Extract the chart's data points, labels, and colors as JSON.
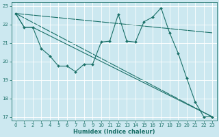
{
  "xlabel": "Humidex (Indice chaleur)",
  "background_color": "#cce8f0",
  "grid_color": "#ffffff",
  "line_color": "#1a7068",
  "xlim": [
    -0.5,
    23.5
  ],
  "ylim": [
    16.8,
    23.2
  ],
  "yticks": [
    17,
    18,
    19,
    20,
    21,
    22,
    23
  ],
  "xticks": [
    0,
    1,
    2,
    3,
    4,
    5,
    6,
    7,
    8,
    9,
    10,
    11,
    12,
    13,
    14,
    15,
    16,
    17,
    18,
    19,
    20,
    21,
    22,
    23
  ],
  "series_main": {
    "x": [
      0,
      1,
      2,
      3,
      4,
      5,
      6,
      7,
      8,
      9,
      10,
      11,
      12,
      13,
      14,
      15,
      16,
      17,
      18,
      19,
      20,
      21,
      22,
      23
    ],
    "y": [
      22.6,
      21.85,
      21.85,
      20.7,
      20.3,
      19.75,
      19.75,
      19.45,
      19.85,
      19.85,
      21.05,
      21.1,
      22.55,
      21.1,
      21.05,
      22.15,
      22.4,
      22.9,
      21.55,
      20.45,
      19.1,
      17.8,
      17.0,
      17.0
    ]
  },
  "series_ref1": {
    "x": [
      0,
      1,
      2,
      23
    ],
    "y": [
      22.6,
      21.85,
      21.85,
      17.0
    ]
  },
  "series_ref2": {
    "x": [
      0,
      23
    ],
    "y": [
      22.6,
      21.55
    ]
  },
  "series_ref3": {
    "x": [
      0,
      23
    ],
    "y": [
      22.6,
      17.0
    ]
  },
  "xlabel_fontsize": 6,
  "tick_fontsize": 5,
  "line_width": 0.8,
  "marker_size": 2.0
}
